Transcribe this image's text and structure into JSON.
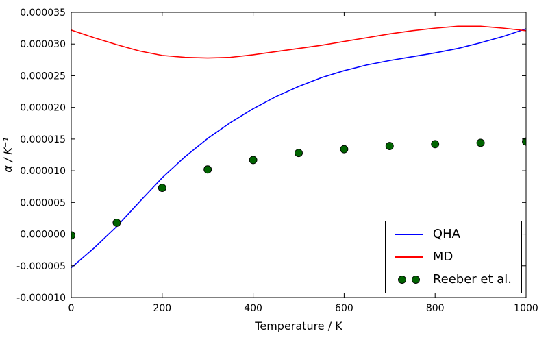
{
  "figure": {
    "background": "#ffffff",
    "frame_color": "#000000"
  },
  "chart_data": {
    "type": "line",
    "title": "",
    "xlabel": "Temperature / K",
    "ylabel": "α / K⁻¹",
    "xlim": [
      0,
      1000
    ],
    "ylim": [
      -1e-05,
      3.5e-05
    ],
    "xticks": [
      0,
      200,
      400,
      600,
      800,
      1000
    ],
    "xtick_labels": [
      "0",
      "200",
      "400",
      "600",
      "800",
      "1000"
    ],
    "yticks": [
      -1e-05,
      -5e-06,
      0,
      5e-06,
      1e-05,
      1.5e-05,
      2e-05,
      2.5e-05,
      3e-05,
      3.5e-05
    ],
    "ytick_labels": [
      "-0.000010",
      "-0.000005",
      "0.000000",
      "0.000005",
      "0.000010",
      "0.000015",
      "0.000020",
      "0.000025",
      "0.000030",
      "0.000035"
    ],
    "grid": false,
    "legend": {
      "position": "lower right",
      "border": true
    },
    "series": [
      {
        "name": "QHA",
        "type": "line",
        "color": "#0000ff",
        "x": [
          0,
          50,
          100,
          150,
          200,
          250,
          300,
          350,
          400,
          450,
          500,
          550,
          600,
          650,
          700,
          750,
          800,
          850,
          900,
          950,
          1000
        ],
        "y": [
          -5.3e-06,
          -2.2e-06,
          1.2e-06,
          5.1e-06,
          8.9e-06,
          1.22e-05,
          1.51e-05,
          1.76e-05,
          1.98e-05,
          2.17e-05,
          2.33e-05,
          2.47e-05,
          2.58e-05,
          2.67e-05,
          2.74e-05,
          2.8e-05,
          2.86e-05,
          2.93e-05,
          3.02e-05,
          3.12e-05,
          3.24e-05
        ]
      },
      {
        "name": "MD",
        "type": "line",
        "color": "#ff0000",
        "x": [
          0,
          50,
          100,
          150,
          200,
          250,
          300,
          350,
          400,
          450,
          500,
          550,
          600,
          650,
          700,
          750,
          800,
          850,
          900,
          950,
          1000
        ],
        "y": [
          3.22e-05,
          3.1e-05,
          2.99e-05,
          2.89e-05,
          2.82e-05,
          2.79e-05,
          2.78e-05,
          2.79e-05,
          2.83e-05,
          2.88e-05,
          2.93e-05,
          2.98e-05,
          3.04e-05,
          3.1e-05,
          3.16e-05,
          3.21e-05,
          3.25e-05,
          3.28e-05,
          3.28e-05,
          3.25e-05,
          3.21e-05
        ]
      },
      {
        "name": "Reeber et al.",
        "type": "scatter",
        "color": "#006400",
        "marker_edge_color": "#000000",
        "x": [
          0,
          100,
          200,
          300,
          400,
          500,
          600,
          700,
          800,
          900,
          1000
        ],
        "y": [
          -2e-07,
          1.8e-06,
          7.3e-06,
          1.02e-05,
          1.17e-05,
          1.28e-05,
          1.34e-05,
          1.39e-05,
          1.42e-05,
          1.44e-05,
          1.46e-05
        ]
      }
    ]
  }
}
